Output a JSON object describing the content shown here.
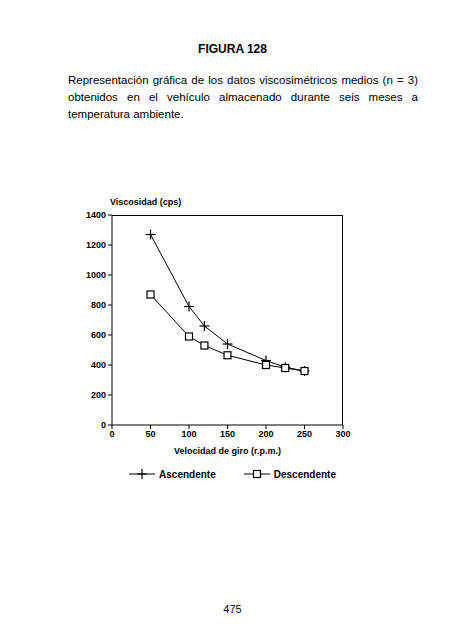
{
  "header": "FIGURA 128",
  "caption": "Representación gráfica de los datos viscosimétricos medios (n = 3) obtenidos en el vehículo almacenado durante seis meses a temperatura ambiente.",
  "page_number": "475",
  "chart_data": {
    "type": "line",
    "y_label": "Viscosidad (cps)",
    "x_label": "Velocidad de giro (r.p.m.)",
    "x": [
      50,
      100,
      120,
      150,
      200,
      225,
      250
    ],
    "series": [
      {
        "name": "Ascendente",
        "color": "#000000",
        "marker": "plus",
        "values": [
          1270,
          790,
          660,
          540,
          430,
          385,
          360
        ]
      },
      {
        "name": "Descendente",
        "color": "#000000",
        "marker": "square",
        "values": [
          870,
          590,
          530,
          465,
          400,
          380,
          360
        ]
      }
    ],
    "xlim": [
      0,
      300
    ],
    "xticks": [
      0,
      50,
      100,
      150,
      200,
      250,
      300
    ],
    "ylim": [
      0,
      1400
    ],
    "yticks": [
      0,
      200,
      400,
      600,
      800,
      1000,
      1200,
      1400
    ],
    "grid": false,
    "legend": "bottom"
  }
}
